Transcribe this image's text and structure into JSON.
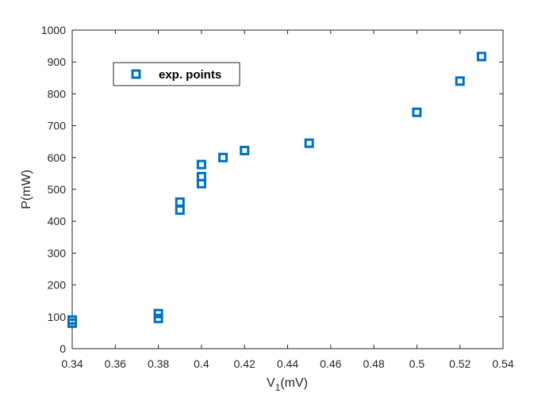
{
  "chart_data": {
    "type": "scatter",
    "title": "",
    "xlabel": {
      "main": "V",
      "sub": "1",
      "unit": "(mV)"
    },
    "ylabel": "P(mW)",
    "xlim": [
      0.34,
      0.54
    ],
    "ylim": [
      0,
      1000
    ],
    "xticks": [
      0.34,
      0.36,
      0.38,
      0.4,
      0.42,
      0.44,
      0.46,
      0.48,
      0.5,
      0.52,
      0.54
    ],
    "xtick_labels": [
      "0.34",
      "0.36",
      "0.38",
      "0.4",
      "0.42",
      "0.44",
      "0.46",
      "0.48",
      "0.5",
      "0.52",
      "0.54"
    ],
    "yticks": [
      0,
      100,
      200,
      300,
      400,
      500,
      600,
      700,
      800,
      900,
      1000
    ],
    "ytick_labels": [
      "0",
      "100",
      "200",
      "300",
      "400",
      "500",
      "600",
      "700",
      "800",
      "900",
      "1000"
    ],
    "grid": false,
    "legend": {
      "position": "top-left",
      "entries": [
        "exp. points"
      ]
    },
    "marker_color": "#0072BD",
    "series": [
      {
        "name": "exp. points",
        "marker": "square",
        "points": [
          [
            0.34,
            80
          ],
          [
            0.34,
            90
          ],
          [
            0.38,
            95
          ],
          [
            0.38,
            110
          ],
          [
            0.39,
            435
          ],
          [
            0.39,
            460
          ],
          [
            0.4,
            518
          ],
          [
            0.4,
            540
          ],
          [
            0.4,
            578
          ],
          [
            0.41,
            600
          ],
          [
            0.42,
            622
          ],
          [
            0.45,
            645
          ],
          [
            0.5,
            742
          ],
          [
            0.52,
            840
          ],
          [
            0.53,
            917
          ]
        ]
      }
    ]
  }
}
